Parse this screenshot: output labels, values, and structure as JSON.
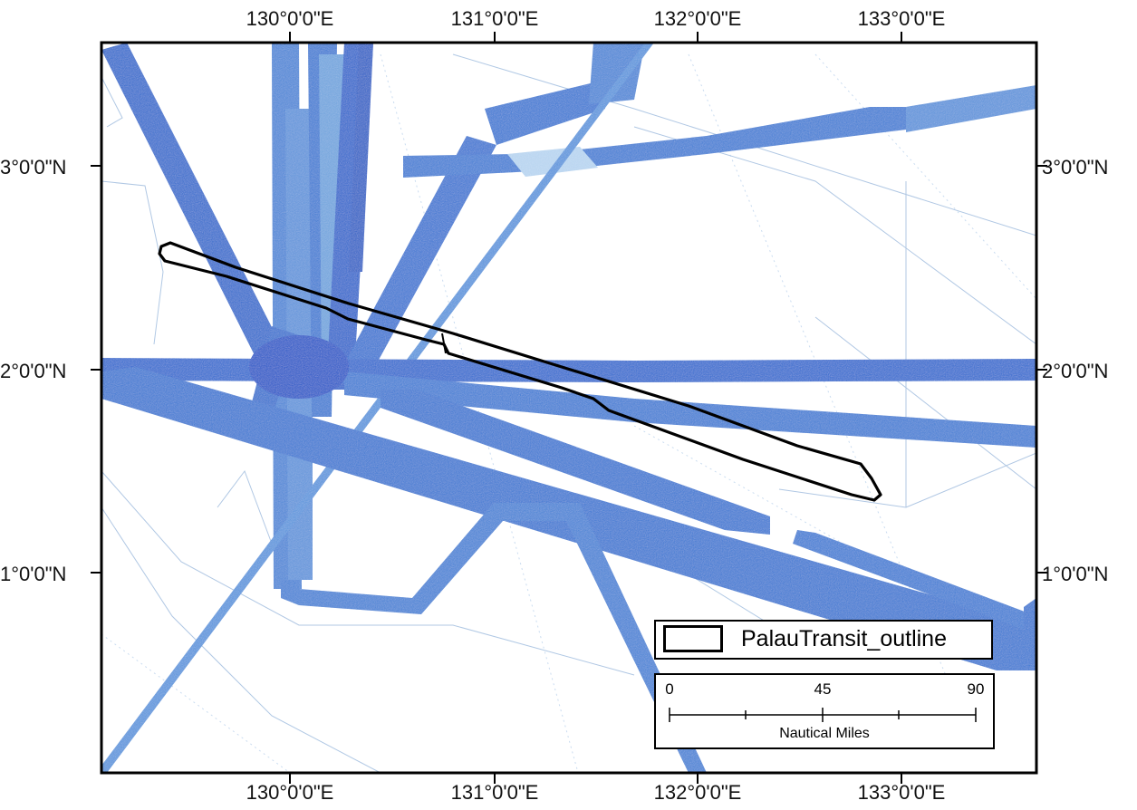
{
  "map": {
    "graticule_top": [
      "130°0'0\"E",
      "131°0'0\"E",
      "132°0'0\"E",
      "133°0'0\"E"
    ],
    "graticule_bottom": [
      "130°0'0\"E",
      "131°0'0\"E",
      "132°0'0\"E",
      "133°0'0\"E"
    ],
    "graticule_left": [
      "3°0'0\"N",
      "2°0'0\"N",
      "1°0'0\"N"
    ],
    "graticule_right": [
      "3°0'0\"N",
      "2°0'0\"N",
      "1°0'0\"N"
    ],
    "colors": {
      "swath_dark": "#1f57c8",
      "swath_mid": "#3a78d0",
      "swath_light": "#6fa6de",
      "outline": "#000000"
    }
  },
  "legend": {
    "layer_label": "PalauTransit_outline"
  },
  "scale_bar": {
    "tick_0": "0",
    "tick_mid": "45",
    "tick_max": "90",
    "unit": "Nautical Miles"
  }
}
